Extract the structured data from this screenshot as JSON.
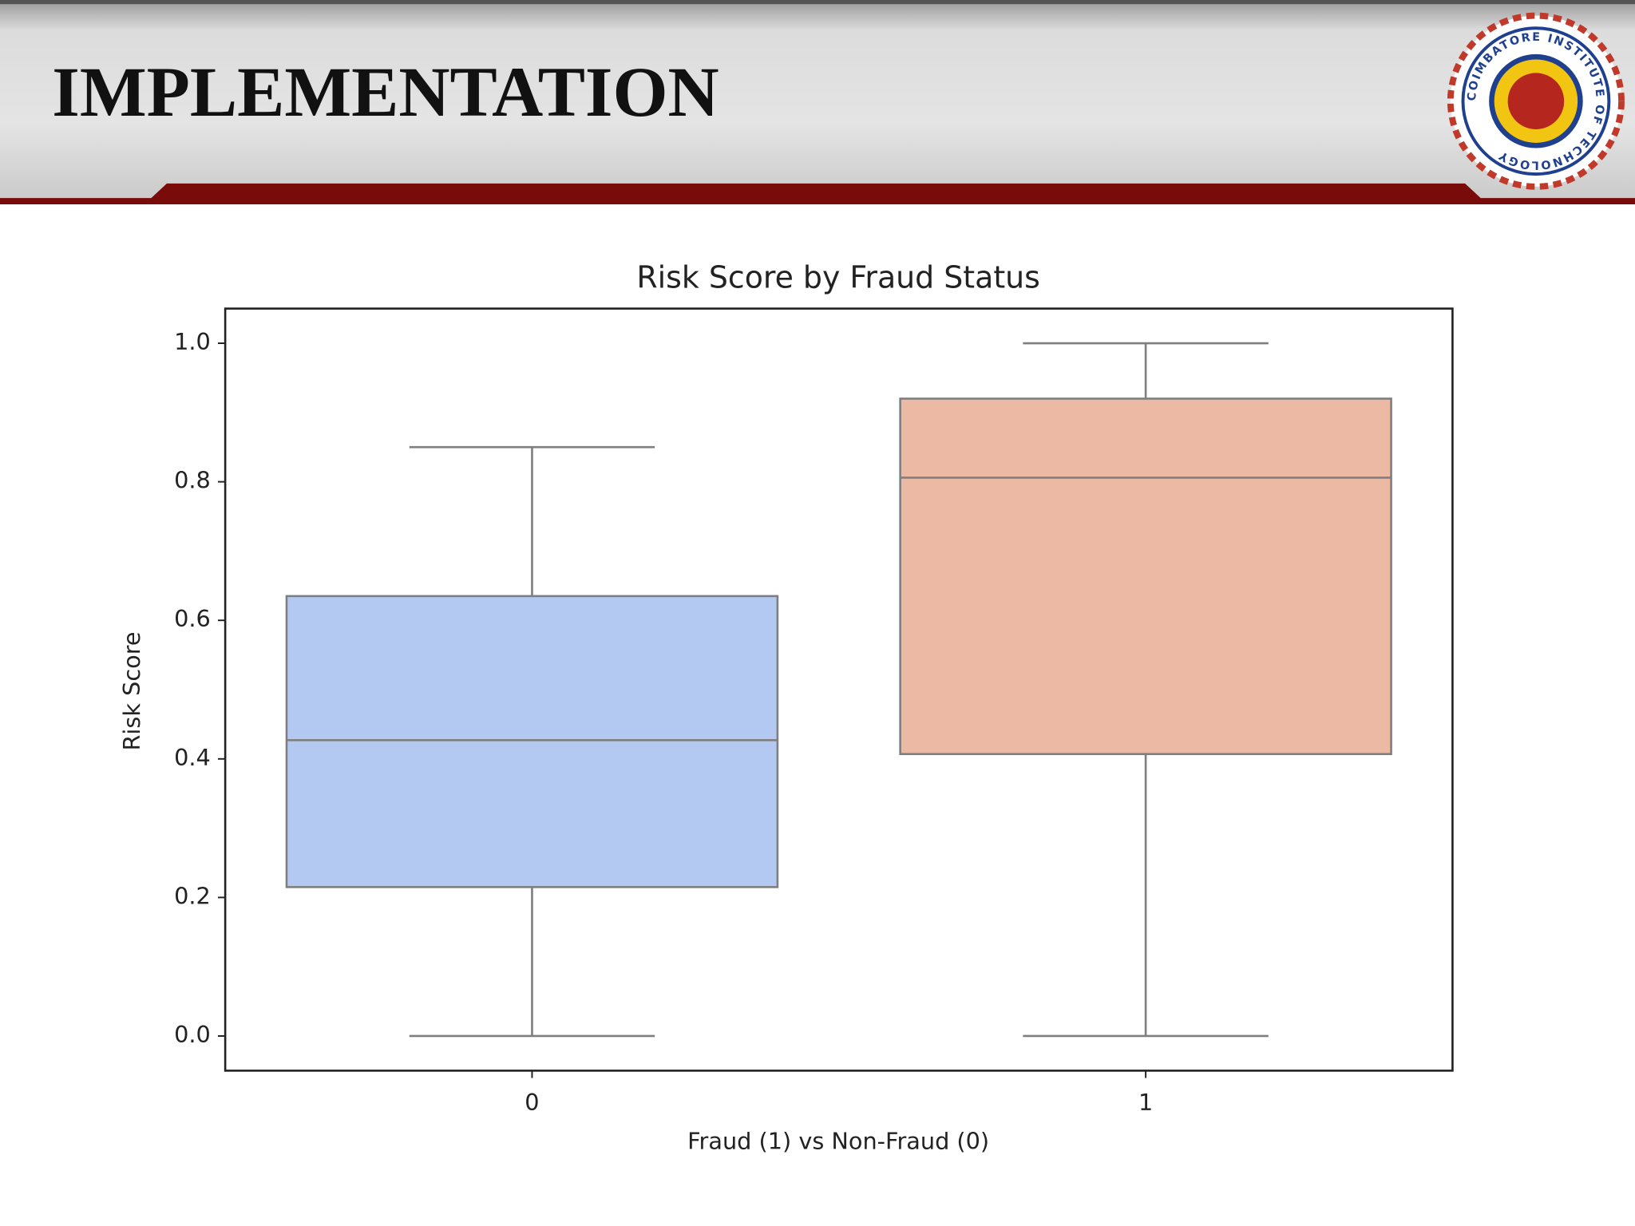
{
  "slide": {
    "title": "IMPLEMENTATION",
    "logo_text": "COIMBATORE INSTITUTE OF TECHNOLOGY"
  },
  "chart_data": {
    "type": "box",
    "title": "Risk Score by Fraud Status",
    "x_label": "Fraud (1) vs Non-Fraud (0)",
    "y_label": "Risk Score",
    "categories": [
      "0",
      "1"
    ],
    "boxes": [
      {
        "whislo": 0.0,
        "q1": 0.215,
        "med": 0.427,
        "q3": 0.635,
        "whishi": 0.85
      },
      {
        "whislo": 0.0,
        "q1": 0.407,
        "med": 0.806,
        "q3": 0.92,
        "whishi": 1.0
      }
    ],
    "colors": [
      "#b3c9f2",
      "#ecbaa4"
    ],
    "edge_color": "#7f7f7f",
    "ylim": [
      -0.05,
      1.05
    ],
    "yticks": [
      {
        "value": 0,
        "label": "0.0"
      },
      0.2,
      0.4,
      0.6,
      0.8,
      {
        "value": 1,
        "label": "1.0"
      }
    ],
    "grid": false
  }
}
